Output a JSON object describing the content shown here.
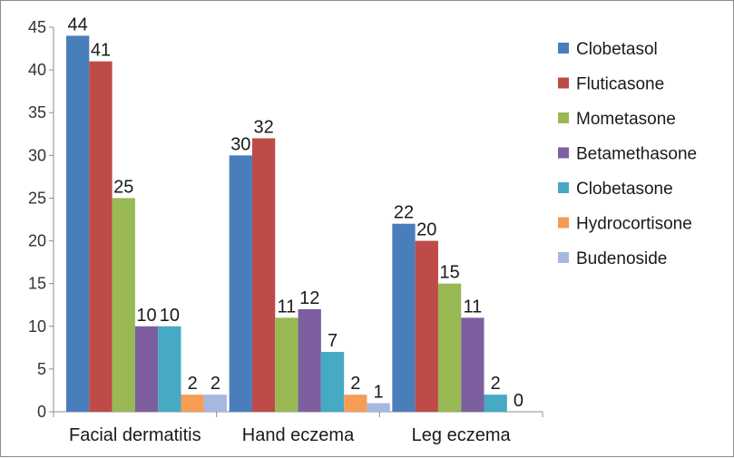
{
  "chart_data": {
    "type": "bar",
    "title": "",
    "xlabel": "",
    "ylabel": "",
    "ylim": [
      0,
      45
    ],
    "y_ticks": [
      0,
      5,
      10,
      15,
      20,
      25,
      30,
      35,
      40,
      45
    ],
    "grid": false,
    "legend_position": "right",
    "categories": [
      "Facial dermatitis",
      "Hand eczema",
      "Leg eczema"
    ],
    "series": [
      {
        "name": "Clobetasol",
        "color": "#4a7ebb",
        "values": [
          44,
          30,
          22
        ]
      },
      {
        "name": "Fluticasone",
        "color": "#be4b48",
        "values": [
          41,
          32,
          20
        ]
      },
      {
        "name": "Mometasone",
        "color": "#98b954",
        "values": [
          25,
          11,
          15
        ]
      },
      {
        "name": "Betamethasone",
        "color": "#7d5fa0",
        "values": [
          10,
          12,
          11
        ]
      },
      {
        "name": "Clobetasone",
        "color": "#46aac5",
        "values": [
          10,
          7,
          2
        ]
      },
      {
        "name": "Hydrocortisone",
        "color": "#f59d56",
        "values": [
          2,
          2,
          0
        ]
      },
      {
        "name": "Budenoside",
        "color": "#a5b8e0",
        "values": [
          2,
          1,
          null
        ]
      }
    ],
    "data_labels": [
      [
        "44",
        "30",
        "22"
      ],
      [
        "41",
        "32",
        "20"
      ],
      [
        "25",
        "11",
        "15"
      ],
      [
        "10",
        "12",
        "11"
      ],
      [
        "10",
        "7",
        "2"
      ],
      [
        "2",
        "2",
        "0"
      ],
      [
        "2",
        "1",
        ""
      ]
    ]
  }
}
